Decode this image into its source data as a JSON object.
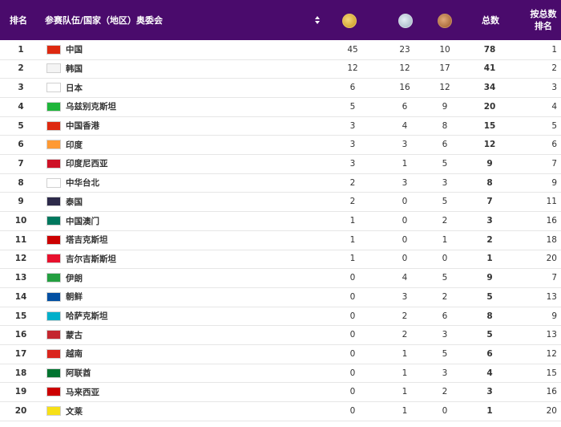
{
  "header": {
    "rank": "排名",
    "name": "参赛队伍/国家（地区）奥委会",
    "total": "总数",
    "last_rank": "按总数排名"
  },
  "rows": [
    {
      "rank": "1",
      "name": "中国",
      "gold": "45",
      "silver": "23",
      "bronze": "10",
      "total": "78",
      "last": "1",
      "flag": "#de2910"
    },
    {
      "rank": "2",
      "name": "韩国",
      "gold": "12",
      "silver": "12",
      "bronze": "17",
      "total": "41",
      "last": "2",
      "flag": "#f4f4f4"
    },
    {
      "rank": "3",
      "name": "日本",
      "gold": "6",
      "silver": "16",
      "bronze": "12",
      "total": "34",
      "last": "3",
      "flag": "#ffffff"
    },
    {
      "rank": "4",
      "name": "乌兹别克斯坦",
      "gold": "5",
      "silver": "6",
      "bronze": "9",
      "total": "20",
      "last": "4",
      "flag": "#1eb53a"
    },
    {
      "rank": "5",
      "name": "中国香港",
      "gold": "3",
      "silver": "4",
      "bronze": "8",
      "total": "15",
      "last": "5",
      "flag": "#de2910"
    },
    {
      "rank": "6",
      "name": "印度",
      "gold": "3",
      "silver": "3",
      "bronze": "6",
      "total": "12",
      "last": "6",
      "flag": "#ff9933"
    },
    {
      "rank": "7",
      "name": "印度尼西亚",
      "gold": "3",
      "silver": "1",
      "bronze": "5",
      "total": "9",
      "last": "7",
      "flag": "#ce1126"
    },
    {
      "rank": "8",
      "name": "中华台北",
      "gold": "2",
      "silver": "3",
      "bronze": "3",
      "total": "8",
      "last": "9",
      "flag": "#ffffff"
    },
    {
      "rank": "9",
      "name": "泰国",
      "gold": "2",
      "silver": "0",
      "bronze": "5",
      "total": "7",
      "last": "11",
      "flag": "#2d2a4a"
    },
    {
      "rank": "10",
      "name": "中国澳门",
      "gold": "1",
      "silver": "0",
      "bronze": "2",
      "total": "3",
      "last": "16",
      "flag": "#00785e"
    },
    {
      "rank": "11",
      "name": "塔吉克斯坦",
      "gold": "1",
      "silver": "0",
      "bronze": "1",
      "total": "2",
      "last": "18",
      "flag": "#cc0000"
    },
    {
      "rank": "12",
      "name": "吉尔吉斯斯坦",
      "gold": "1",
      "silver": "0",
      "bronze": "0",
      "total": "1",
      "last": "20",
      "flag": "#e8112d"
    },
    {
      "rank": "13",
      "name": "伊朗",
      "gold": "0",
      "silver": "4",
      "bronze": "5",
      "total": "9",
      "last": "7",
      "flag": "#239f40"
    },
    {
      "rank": "14",
      "name": "朝鲜",
      "gold": "0",
      "silver": "3",
      "bronze": "2",
      "total": "5",
      "last": "13",
      "flag": "#024fa2"
    },
    {
      "rank": "15",
      "name": "哈萨克斯坦",
      "gold": "0",
      "silver": "2",
      "bronze": "6",
      "total": "8",
      "last": "9",
      "flag": "#00afca"
    },
    {
      "rank": "16",
      "name": "蒙古",
      "gold": "0",
      "silver": "2",
      "bronze": "3",
      "total": "5",
      "last": "13",
      "flag": "#c4272f"
    },
    {
      "rank": "17",
      "name": "越南",
      "gold": "0",
      "silver": "1",
      "bronze": "5",
      "total": "6",
      "last": "12",
      "flag": "#da251d"
    },
    {
      "rank": "18",
      "name": "阿联酋",
      "gold": "0",
      "silver": "1",
      "bronze": "3",
      "total": "4",
      "last": "15",
      "flag": "#00732f"
    },
    {
      "rank": "19",
      "name": "马来西亚",
      "gold": "0",
      "silver": "1",
      "bronze": "2",
      "total": "3",
      "last": "16",
      "flag": "#cc0001"
    },
    {
      "rank": "20",
      "name": "文莱",
      "gold": "0",
      "silver": "1",
      "bronze": "0",
      "total": "1",
      "last": "20",
      "flag": "#f7e017"
    }
  ]
}
